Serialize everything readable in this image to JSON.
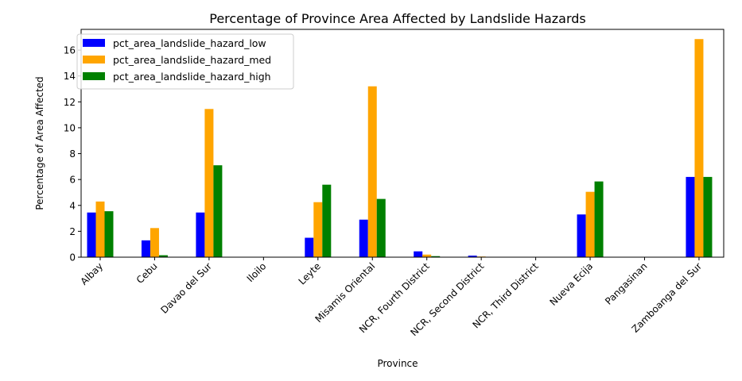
{
  "chart_data": {
    "type": "bar",
    "title": "Percentage of Province Area Affected by Landslide Hazards",
    "xlabel": "Province",
    "ylabel": "Percentage of Area Affected",
    "ylim": [
      0,
      17.6
    ],
    "yticks": [
      0,
      2,
      4,
      6,
      8,
      10,
      12,
      14,
      16
    ],
    "grid": false,
    "legend_position": "top-left",
    "categories": [
      "Albay",
      "Cebu",
      "Davao del Sur",
      "Iloilo",
      "Leyte",
      "Misamis Oriental",
      "NCR, Fourth District",
      "NCR, Second District",
      "NCR, Third District",
      "Nueva Ecija",
      "Pangasinan",
      "Zamboanga del Sur"
    ],
    "series": [
      {
        "name": "pct_area_landslide_hazard_low",
        "color": "#0000ff",
        "values": [
          3.45,
          1.3,
          3.45,
          0,
          1.5,
          2.9,
          0.45,
          0.12,
          0,
          3.3,
          0,
          6.2
        ]
      },
      {
        "name": "pct_area_landslide_hazard_med",
        "color": "#ffa500",
        "values": [
          4.3,
          2.25,
          11.45,
          0,
          4.25,
          13.2,
          0.2,
          0.05,
          0,
          5.05,
          0,
          16.85
        ]
      },
      {
        "name": "pct_area_landslide_hazard_high",
        "color": "#008000",
        "values": [
          3.55,
          0.15,
          7.1,
          0,
          5.6,
          4.5,
          0.08,
          0.02,
          0,
          5.85,
          0,
          6.2
        ]
      }
    ]
  }
}
